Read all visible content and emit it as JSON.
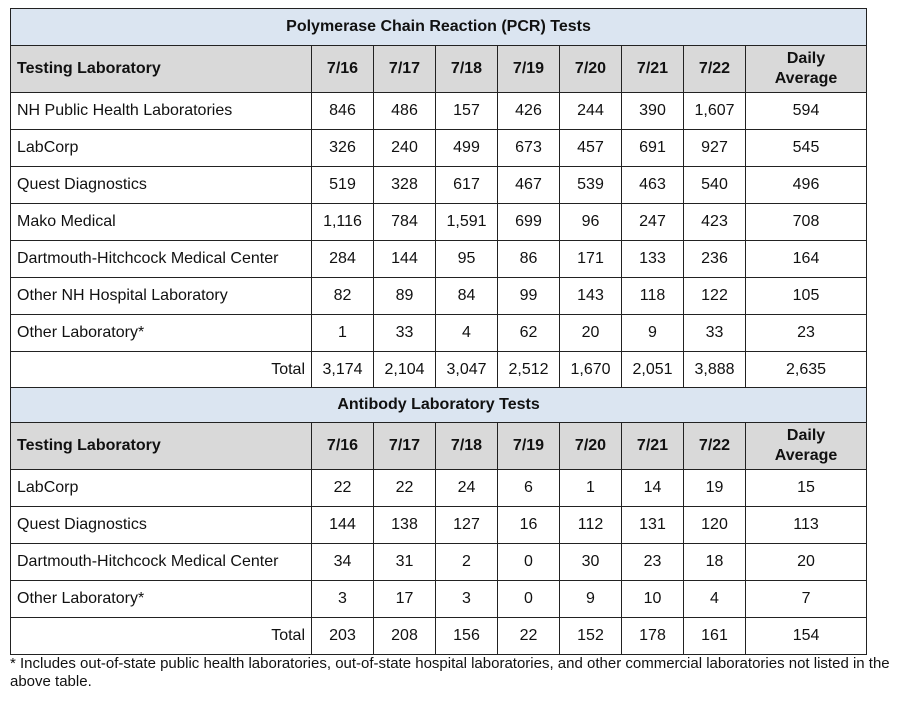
{
  "pcr": {
    "title": "Polymerase Chain Reaction (PCR) Tests",
    "header": {
      "lab": "Testing Laboratory",
      "dates": [
        "7/16",
        "7/17",
        "7/18",
        "7/19",
        "7/20",
        "7/21",
        "7/22"
      ],
      "avg_line1": "Daily",
      "avg_line2": "Average"
    },
    "rows": [
      {
        "name": "NH Public Health Laboratories",
        "values": [
          "846",
          "486",
          "157",
          "426",
          "244",
          "390",
          "1,607"
        ],
        "avg": "594"
      },
      {
        "name": "LabCorp",
        "values": [
          "326",
          "240",
          "499",
          "673",
          "457",
          "691",
          "927"
        ],
        "avg": "545"
      },
      {
        "name": "Quest Diagnostics",
        "values": [
          "519",
          "328",
          "617",
          "467",
          "539",
          "463",
          "540"
        ],
        "avg": "496"
      },
      {
        "name": "Mako Medical",
        "values": [
          "1,116",
          "784",
          "1,591",
          "699",
          "96",
          "247",
          "423"
        ],
        "avg": "708"
      },
      {
        "name": "Dartmouth-Hitchcock Medical Center",
        "values": [
          "284",
          "144",
          "95",
          "86",
          "171",
          "133",
          "236"
        ],
        "avg": "164"
      },
      {
        "name": "Other NH Hospital Laboratory",
        "values": [
          "82",
          "89",
          "84",
          "99",
          "143",
          "118",
          "122"
        ],
        "avg": "105"
      },
      {
        "name": "Other Laboratory*",
        "values": [
          "1",
          "33",
          "4",
          "62",
          "20",
          "9",
          "33"
        ],
        "avg": "23"
      }
    ],
    "total": {
      "label": "Total",
      "values": [
        "3,174",
        "2,104",
        "3,047",
        "2,512",
        "1,670",
        "2,051",
        "3,888"
      ],
      "avg": "2,635"
    }
  },
  "antibody": {
    "title": "Antibody Laboratory Tests",
    "header": {
      "lab": "Testing Laboratory",
      "dates": [
        "7/16",
        "7/17",
        "7/18",
        "7/19",
        "7/20",
        "7/21",
        "7/22"
      ],
      "avg_line1": "Daily",
      "avg_line2": "Average"
    },
    "rows": [
      {
        "name": "LabCorp",
        "values": [
          "22",
          "22",
          "24",
          "6",
          "1",
          "14",
          "19"
        ],
        "avg": "15"
      },
      {
        "name": "Quest Diagnostics",
        "values": [
          "144",
          "138",
          "127",
          "16",
          "112",
          "131",
          "120"
        ],
        "avg": "113"
      },
      {
        "name": "Dartmouth-Hitchcock Medical Center",
        "values": [
          "34",
          "31",
          "2",
          "0",
          "30",
          "23",
          "18"
        ],
        "avg": "20"
      },
      {
        "name": "Other Laboratory*",
        "values": [
          "3",
          "17",
          "3",
          "0",
          "9",
          "10",
          "4"
        ],
        "avg": "7"
      }
    ],
    "total": {
      "label": "Total",
      "values": [
        "203",
        "208",
        "156",
        "22",
        "152",
        "178",
        "161"
      ],
      "avg": "154"
    }
  },
  "footnote": "* Includes out-of-state public health laboratories, out-of-state hospital laboratories, and other commercial laboratories not listed in the above table."
}
